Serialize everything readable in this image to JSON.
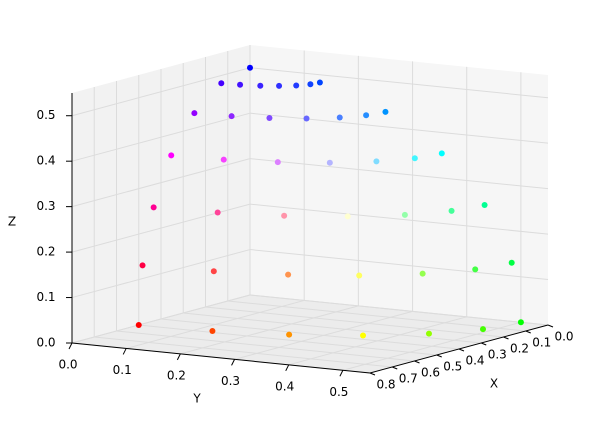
{
  "chart_data": {
    "type": "scatter3d",
    "xlabel": "X",
    "ylabel": "Y",
    "zlabel": "Z",
    "x": [
      0.5,
      0.483,
      0.433,
      0.354,
      0.25,
      0.129,
      0,
      0.483,
      0.467,
      0.418,
      0.342,
      0.242,
      0.125,
      0,
      0.433,
      0.418,
      0.375,
      0.306,
      0.217,
      0.112,
      0,
      0.354,
      0.342,
      0.306,
      0.25,
      0.177,
      0.092,
      0,
      0.25,
      0.241,
      0.217,
      0.177,
      0.125,
      0.065,
      0,
      0.129,
      0.125,
      0.112,
      0.091,
      0.065,
      0.033,
      0,
      0
    ],
    "y": [
      0,
      0.129,
      0.25,
      0.354,
      0.433,
      0.483,
      0.5,
      0,
      0.125,
      0.242,
      0.342,
      0.418,
      0.467,
      0.483,
      0,
      0.112,
      0.217,
      0.306,
      0.375,
      0.418,
      0.433,
      0,
      0.092,
      0.177,
      0.25,
      0.306,
      0.342,
      0.354,
      0,
      0.065,
      0.125,
      0.177,
      0.217,
      0.241,
      0.25,
      0,
      0.033,
      0.065,
      0.091,
      0.112,
      0.125,
      0.129,
      0
    ],
    "z": [
      0,
      0,
      0,
      0,
      0,
      0,
      0,
      0.129,
      0.129,
      0.129,
      0.129,
      0.129,
      0.129,
      0.129,
      0.25,
      0.25,
      0.25,
      0.25,
      0.25,
      0.25,
      0.25,
      0.354,
      0.354,
      0.354,
      0.354,
      0.354,
      0.354,
      0.354,
      0.433,
      0.433,
      0.433,
      0.433,
      0.433,
      0.433,
      0.433,
      0.483,
      0.483,
      0.483,
      0.483,
      0.483,
      0.483,
      0.483,
      0.5
    ],
    "color_mode": "rgb-from-xyz",
    "xlim": [
      0,
      0.8
    ],
    "xticks": [
      {
        "value": 0,
        "label": "0.0"
      },
      0.1,
      0.2,
      0.3,
      0.4,
      0.5,
      0.6,
      0.7,
      0.8
    ],
    "ylim": [
      0,
      0.55
    ],
    "yticks": [
      {
        "value": 0,
        "label": "0.0"
      },
      0.1,
      0.2,
      0.3,
      0.4,
      0.5
    ],
    "zlim": [
      0,
      0.55
    ],
    "zticks": [
      {
        "value": 0,
        "label": "0.0"
      },
      0.1,
      0.2,
      0.3,
      0.4,
      0.5
    ],
    "grid": true
  }
}
